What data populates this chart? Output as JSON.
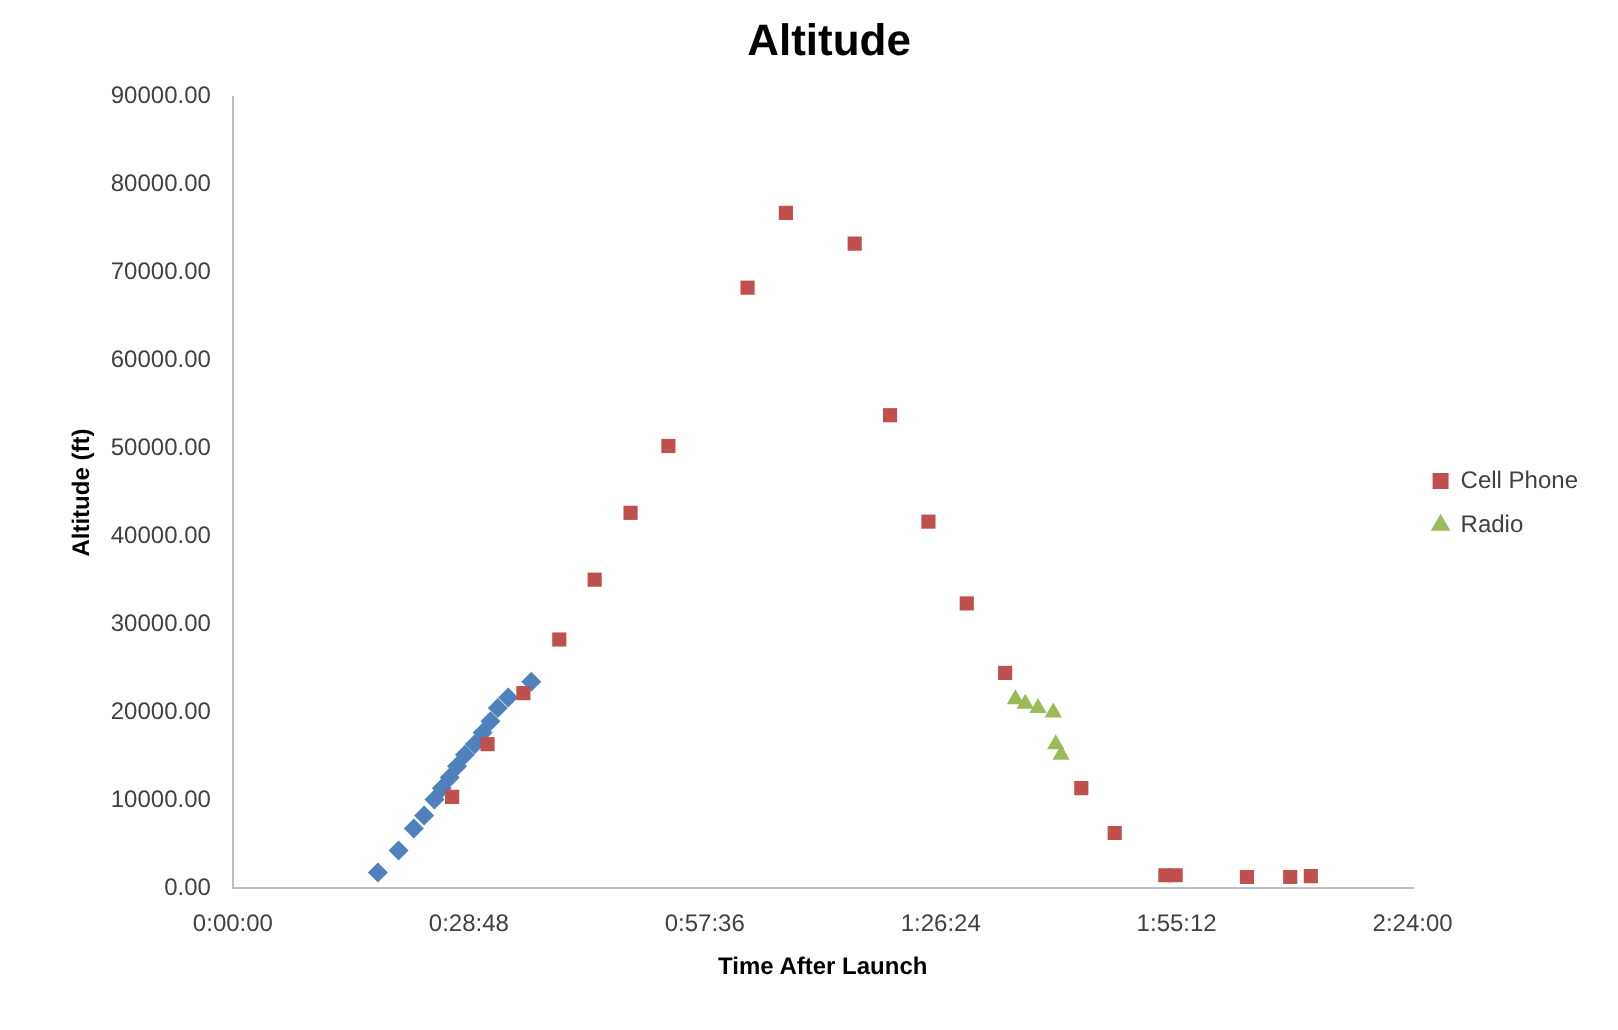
{
  "chart_data": {
    "type": "scatter",
    "title": "Altitude",
    "xlabel": "Time After Launch",
    "ylabel": "Altitude (ft)",
    "legend": "right",
    "grid": false,
    "xlim": [
      0,
      2.4
    ],
    "xticks": [
      {
        "value": 0,
        "label": "0:00:00"
      },
      {
        "value": 0.48,
        "label": "0:28:48"
      },
      {
        "value": 0.96,
        "label": "0:57:36"
      },
      {
        "value": 1.44,
        "label": "1:26:24"
      },
      {
        "value": 1.92,
        "label": "1:55:12"
      },
      {
        "value": 2.4,
        "label": "2:24:00"
      }
    ],
    "ylim": [
      0,
      90000
    ],
    "yticks": [
      {
        "value": 0,
        "label": "0.00"
      },
      {
        "value": 10000,
        "label": "10000.00"
      },
      {
        "value": 20000,
        "label": "20000.00"
      },
      {
        "value": 30000,
        "label": "30000.00"
      },
      {
        "value": 40000,
        "label": "40000.00"
      },
      {
        "value": 50000,
        "label": "50000.00"
      },
      {
        "value": 60000,
        "label": "60000.00"
      },
      {
        "value": 70000,
        "label": "70000.00"
      },
      {
        "value": 80000,
        "label": "80000.00"
      },
      {
        "value": 90000,
        "label": "90000.00"
      }
    ],
    "series": [
      {
        "name": "Cell Phone",
        "color": "#c0504d",
        "marker": "square",
        "x": [
          0.446,
          0.518,
          0.591,
          0.664,
          0.736,
          0.809,
          0.886,
          1.047,
          1.125,
          1.265,
          1.337,
          1.415,
          1.493,
          1.571,
          1.726,
          1.794,
          1.897,
          1.918,
          2.063,
          2.151,
          2.193
        ],
        "values": [
          10400,
          16400,
          22200,
          28300,
          35100,
          42700,
          50300,
          68300,
          76800,
          73300,
          53800,
          41700,
          32400,
          24500,
          11400,
          6300,
          1500,
          1500,
          1300,
          1300,
          1400
        ]
      },
      {
        "name": "Radio",
        "color": "#9bbb59",
        "marker": "triangle",
        "x": [
          1.592,
          1.612,
          1.638,
          1.669,
          1.674,
          1.685
        ],
        "values": [
          21500,
          21000,
          20500,
          20000,
          16400,
          15200
        ]
      },
      {
        "color": "#4f81bd",
        "marker": "diamond",
        "x": [
          0.295,
          0.337,
          0.368,
          0.389,
          0.41,
          0.425,
          0.441,
          0.456,
          0.472,
          0.492,
          0.508,
          0.524,
          0.539,
          0.56,
          0.607
        ],
        "values": [
          1800,
          4300,
          6800,
          8300,
          10100,
          11400,
          12600,
          13900,
          15200,
          16400,
          17700,
          19000,
          20500,
          21700,
          23500
        ]
      }
    ]
  }
}
